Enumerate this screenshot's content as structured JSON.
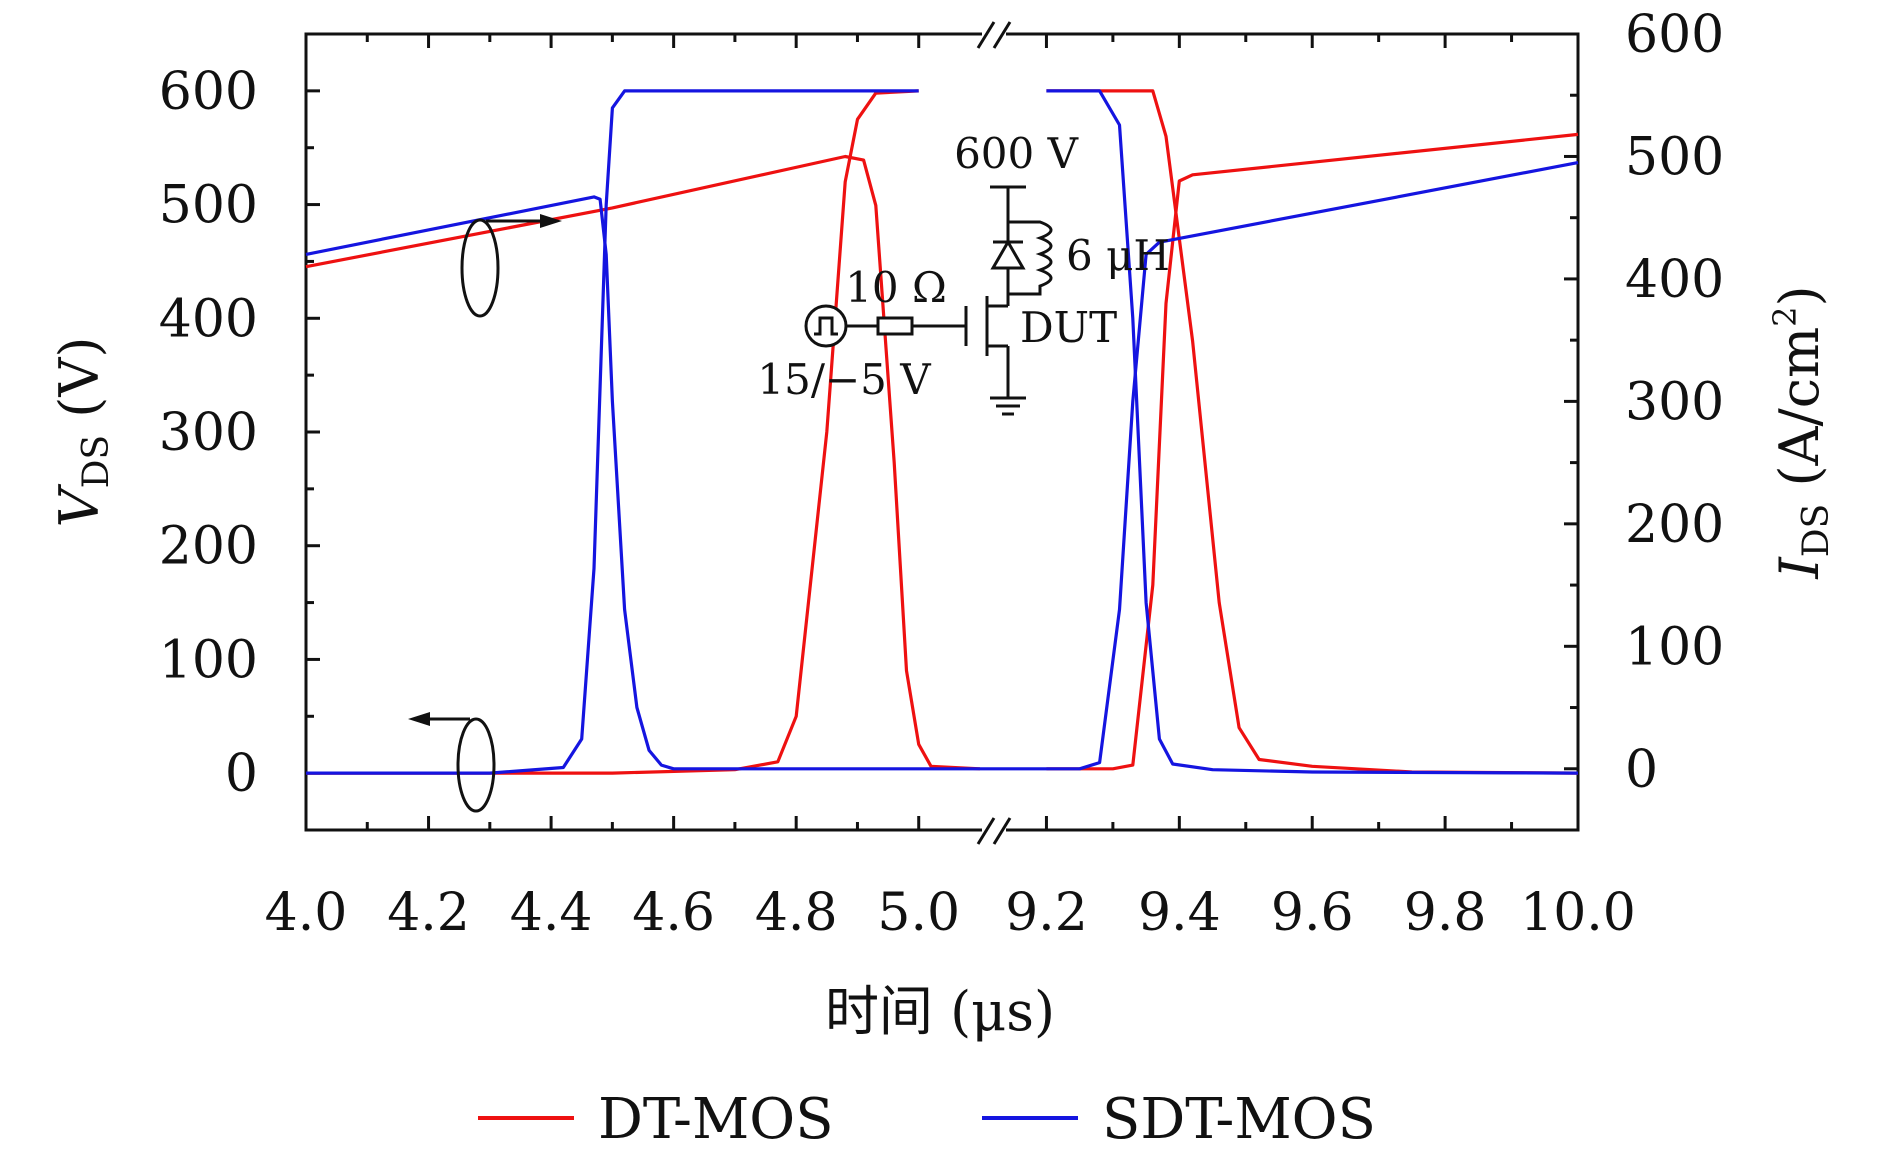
{
  "chart_data": {
    "type": "line",
    "xlabel": "时间 (μs)",
    "ylabel_left": {
      "symbol": "V",
      "subscript": "DS",
      "unit": " (V)"
    },
    "ylabel_right": {
      "symbol": "I",
      "subscript": "DS",
      "unit": " (A/cm",
      "unit_sup": "2",
      "unit_close": ")"
    },
    "x_break": {
      "after": 5.0,
      "before": 9.2
    },
    "x_ranges": [
      [
        4.0,
        5.1
      ],
      [
        9.1,
        10.0
      ]
    ],
    "x_ticks": [
      "4.0",
      "4.2",
      "4.4",
      "4.6",
      "4.8",
      "5.0",
      "9.2",
      "9.4",
      "9.6",
      "9.8",
      "10.0"
    ],
    "y_left": {
      "range": [
        -50,
        650
      ],
      "ticks": [
        "0",
        "100",
        "200",
        "300",
        "400",
        "500",
        "600"
      ]
    },
    "y_right": {
      "range": [
        -50,
        600
      ],
      "ticks": [
        "0",
        "100",
        "200",
        "300",
        "400",
        "500",
        "600"
      ]
    },
    "legend": {
      "position": "bottom",
      "items": [
        "DT-MOS",
        "SDT-MOS"
      ]
    },
    "series": [
      {
        "name": "DT-MOS",
        "color": "#ee1111",
        "vds": [
          [
            4.0,
            0
          ],
          [
            4.5,
            0
          ],
          [
            4.7,
            3
          ],
          [
            4.77,
            10
          ],
          [
            4.8,
            50
          ],
          [
            4.85,
            300
          ],
          [
            4.88,
            520
          ],
          [
            4.9,
            575
          ],
          [
            4.93,
            598
          ],
          [
            5.0,
            600
          ],
          [
            9.2,
            600
          ],
          [
            9.36,
            600
          ],
          [
            9.38,
            560
          ],
          [
            9.42,
            380
          ],
          [
            9.46,
            150
          ],
          [
            9.49,
            40
          ],
          [
            9.52,
            12
          ],
          [
            9.6,
            6
          ],
          [
            9.75,
            1
          ],
          [
            10.0,
            0
          ]
        ],
        "ids": [
          [
            4.0,
            410
          ],
          [
            4.5,
            458
          ],
          [
            4.88,
            500
          ],
          [
            4.91,
            497
          ],
          [
            4.93,
            460
          ],
          [
            4.96,
            250
          ],
          [
            4.98,
            80
          ],
          [
            5.0,
            20
          ],
          [
            5.02,
            2
          ],
          [
            5.1,
            0
          ],
          [
            9.2,
            0
          ],
          [
            9.3,
            0
          ],
          [
            9.33,
            3
          ],
          [
            9.36,
            150
          ],
          [
            9.38,
            380
          ],
          [
            9.4,
            480
          ],
          [
            9.42,
            485
          ],
          [
            10.0,
            518
          ]
        ]
      },
      {
        "name": "SDT-MOS",
        "color": "#1515e0",
        "vds": [
          [
            4.0,
            0
          ],
          [
            4.3,
            0
          ],
          [
            4.42,
            5
          ],
          [
            4.45,
            30
          ],
          [
            4.47,
            180
          ],
          [
            4.49,
            500
          ],
          [
            4.5,
            585
          ],
          [
            4.52,
            600
          ],
          [
            5.0,
            600
          ],
          [
            9.2,
            600
          ],
          [
            9.28,
            600
          ],
          [
            9.31,
            570
          ],
          [
            9.33,
            400
          ],
          [
            9.35,
            150
          ],
          [
            9.37,
            30
          ],
          [
            9.39,
            8
          ],
          [
            9.45,
            3
          ],
          [
            9.6,
            1
          ],
          [
            10.0,
            0
          ]
        ],
        "ids": [
          [
            4.0,
            420
          ],
          [
            4.47,
            467
          ],
          [
            4.48,
            465
          ],
          [
            4.49,
            420
          ],
          [
            4.5,
            300
          ],
          [
            4.52,
            130
          ],
          [
            4.54,
            50
          ],
          [
            4.56,
            15
          ],
          [
            4.58,
            3
          ],
          [
            4.6,
            0
          ],
          [
            5.1,
            0
          ],
          [
            9.1,
            0
          ],
          [
            9.25,
            0
          ],
          [
            9.28,
            5
          ],
          [
            9.31,
            130
          ],
          [
            9.33,
            300
          ],
          [
            9.35,
            420
          ],
          [
            9.37,
            430
          ],
          [
            10.0,
            495
          ]
        ]
      }
    ],
    "annotations": {
      "circuit": {
        "supply": "600 V",
        "inductor": "6 μH",
        "resistor": "10 Ω",
        "gate_drive": "15/−5 V",
        "device": "DUT"
      }
    }
  }
}
